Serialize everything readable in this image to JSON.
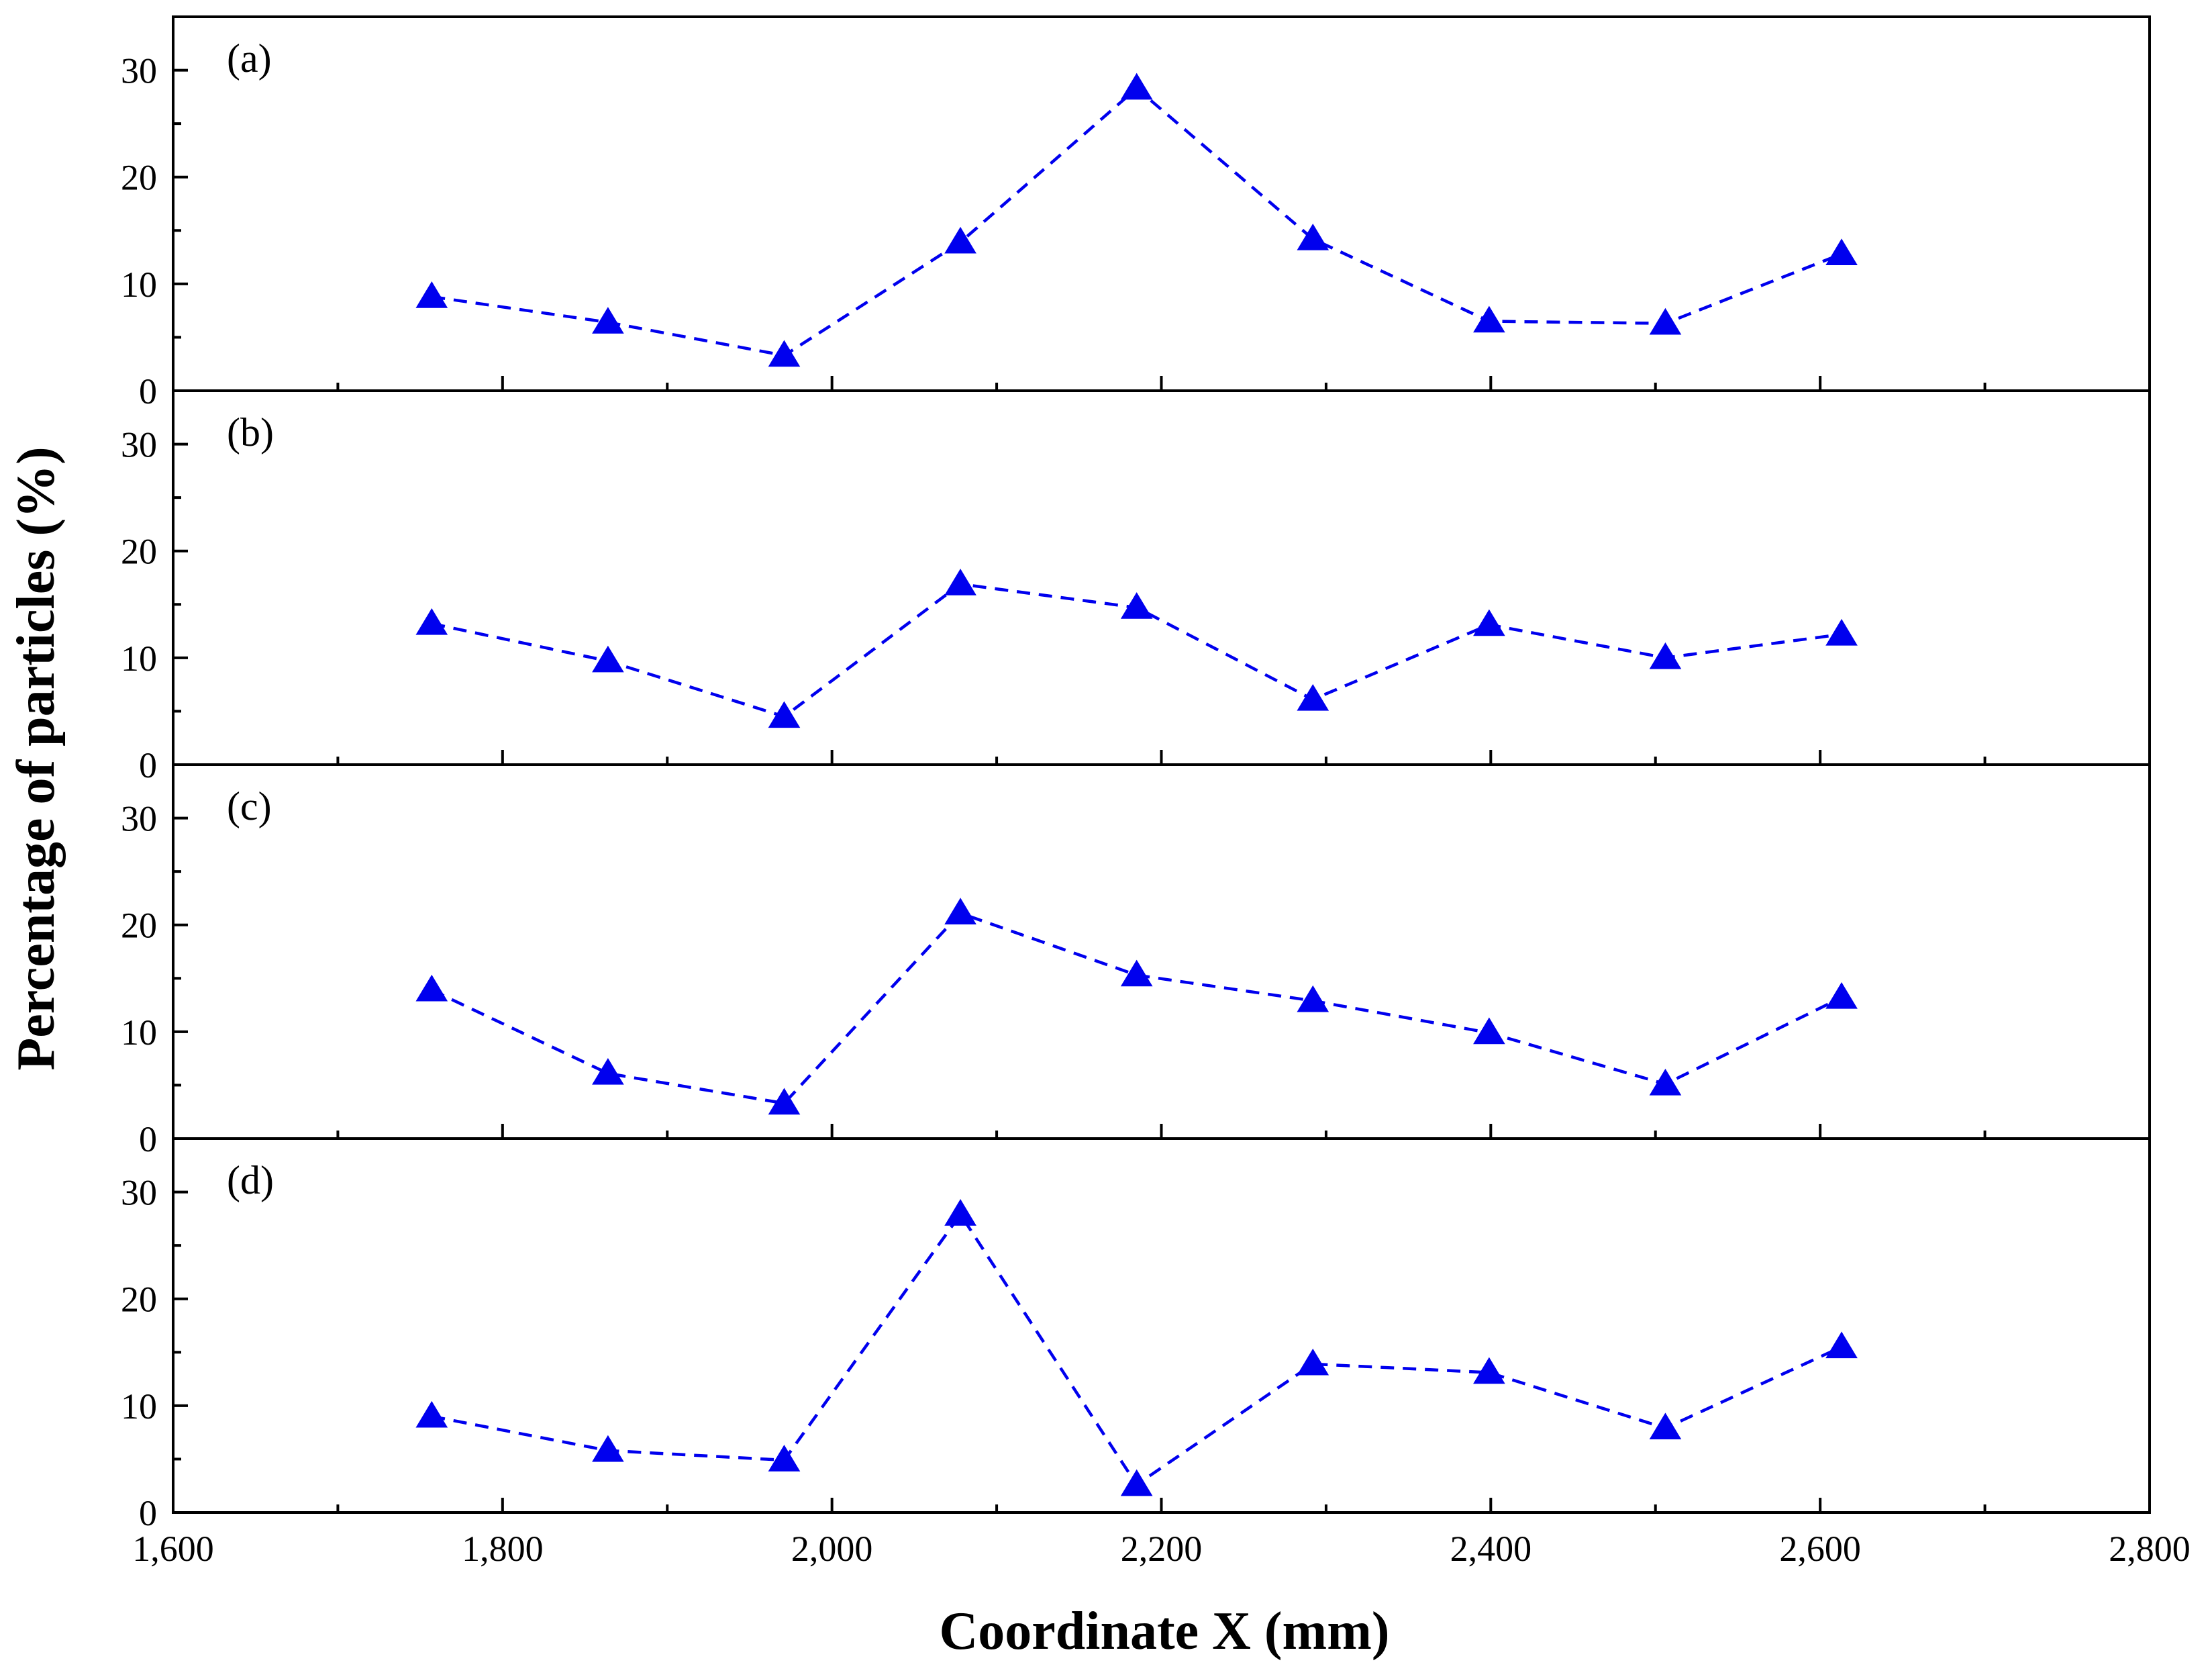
{
  "chart_data": {
    "type": "line",
    "x_axis": {
      "label": "Coordinate X (mm)",
      "lim": [
        1600,
        2800
      ],
      "major_ticks": [
        1600,
        1800,
        2000,
        2200,
        2400,
        2600,
        2800
      ],
      "tick_labels": [
        "1,600",
        "1,800",
        "2,000",
        "2,200",
        "2,400",
        "2,600",
        "2,800"
      ],
      "minor_ticks": [
        1700,
        1900,
        2100,
        2300,
        2500,
        2700
      ]
    },
    "y_axis": {
      "label": "Percentage of particles (%)",
      "lim": [
        0,
        35
      ],
      "major_ticks": [
        0,
        10,
        20,
        30
      ],
      "tick_labels": [
        "0",
        "10",
        "20",
        "30"
      ],
      "minor_ticks": [
        5,
        15,
        25,
        35
      ]
    },
    "x": [
      1757,
      1864,
      1971,
      2078,
      2185,
      2292,
      2399,
      2506,
      2613
    ],
    "marker": "filled-triangle",
    "line_style": "dashed",
    "series_color": "#0000ee",
    "grid": false,
    "panels": [
      {
        "label": "(a)",
        "values": [
          8.8,
          6.4,
          3.3,
          13.9,
          28.3,
          14.2,
          6.5,
          6.3,
          12.8
        ]
      },
      {
        "label": "(b)",
        "values": [
          13.2,
          9.7,
          4.5,
          16.9,
          14.7,
          6.1,
          13.1,
          10.0,
          12.2
        ]
      },
      {
        "label": "(c)",
        "values": [
          13.9,
          6.1,
          3.3,
          21.1,
          15.3,
          12.9,
          9.9,
          5.1,
          13.2
        ]
      },
      {
        "label": "(d)",
        "values": [
          9.0,
          5.8,
          4.9,
          27.9,
          2.6,
          13.9,
          13.1,
          7.9,
          15.5
        ]
      }
    ]
  }
}
